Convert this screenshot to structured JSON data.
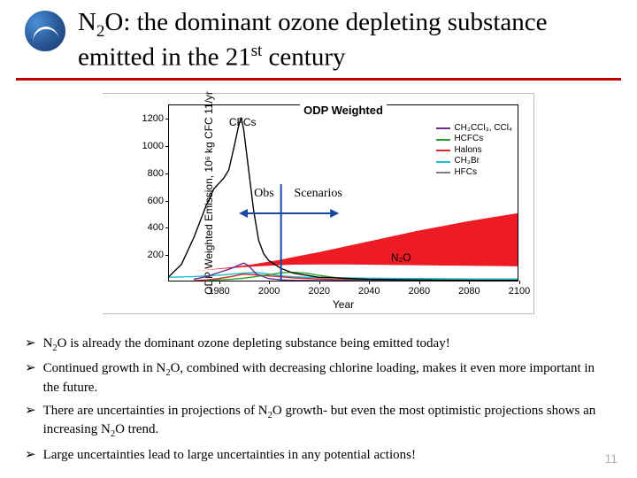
{
  "title_html": "N<sub>2</sub>O: the dominant ozone depleting substance emitted in the 21<sup>st</sup> century",
  "page_number": "11",
  "chart": {
    "title": "ODP Weighted",
    "ylabel": "ODP Weighted Emission, 10⁶ kg CFC 11/yr",
    "xlabel": "Year",
    "xlim": [
      1960,
      2100
    ],
    "ylim": [
      0,
      1300
    ],
    "ytick_step": 200,
    "xtick_step": 20,
    "cfc_label": "CFCs",
    "n2o_label": "N₂O",
    "obs_text": "Obs",
    "scen_text": "Scenarios",
    "obs_divider_year": 2005,
    "legend": [
      {
        "label": "CH₃CCl₃, CCl₄",
        "color": "#6a2c91"
      },
      {
        "label": "HCFCs",
        "color": "#2aa02a"
      },
      {
        "label": "Halons",
        "color": "#d62728"
      },
      {
        "label": "CH₃Br",
        "color": "#17becf"
      },
      {
        "label": "HFCs",
        "color": "#7f7f7f"
      }
    ],
    "series": {
      "cfcs": {
        "color": "#000000",
        "xy": [
          [
            1960,
            30
          ],
          [
            1965,
            120
          ],
          [
            1970,
            320
          ],
          [
            1975,
            560
          ],
          [
            1978,
            680
          ],
          [
            1980,
            720
          ],
          [
            1982,
            760
          ],
          [
            1984,
            820
          ],
          [
            1986,
            980
          ],
          [
            1988,
            1150
          ],
          [
            1989,
            1210
          ],
          [
            1990,
            1120
          ],
          [
            1992,
            820
          ],
          [
            1994,
            520
          ],
          [
            1996,
            300
          ],
          [
            1998,
            200
          ],
          [
            2000,
            150
          ],
          [
            2005,
            90
          ],
          [
            2010,
            55
          ],
          [
            2020,
            25
          ],
          [
            2040,
            10
          ],
          [
            2060,
            5
          ],
          [
            2080,
            3
          ],
          [
            2100,
            2
          ]
        ]
      },
      "ch3ccl3": {
        "color": "#6a2c91",
        "xy": [
          [
            1970,
            10
          ],
          [
            1975,
            30
          ],
          [
            1980,
            60
          ],
          [
            1985,
            90
          ],
          [
            1990,
            130
          ],
          [
            1992,
            110
          ],
          [
            1995,
            50
          ],
          [
            2000,
            15
          ],
          [
            2005,
            5
          ],
          [
            2010,
            2
          ],
          [
            2020,
            0
          ],
          [
            2100,
            0
          ]
        ]
      },
      "hcfcs": {
        "color": "#2aa02a",
        "xy": [
          [
            1975,
            0
          ],
          [
            1980,
            5
          ],
          [
            1985,
            10
          ],
          [
            1990,
            18
          ],
          [
            1995,
            30
          ],
          [
            2000,
            45
          ],
          [
            2005,
            58
          ],
          [
            2010,
            62
          ],
          [
            2015,
            55
          ],
          [
            2020,
            40
          ],
          [
            2030,
            15
          ],
          [
            2040,
            5
          ],
          [
            2060,
            1
          ],
          [
            2100,
            0
          ]
        ]
      },
      "halons": {
        "color": "#d62728",
        "xy": [
          [
            1970,
            0
          ],
          [
            1975,
            5
          ],
          [
            1980,
            15
          ],
          [
            1985,
            30
          ],
          [
            1990,
            48
          ],
          [
            1995,
            42
          ],
          [
            2000,
            35
          ],
          [
            2005,
            28
          ],
          [
            2010,
            20
          ],
          [
            2020,
            12
          ],
          [
            2030,
            6
          ],
          [
            2050,
            2
          ],
          [
            2100,
            0
          ]
        ]
      },
      "ch3br": {
        "color": "#17becf",
        "xy": [
          [
            1960,
            25
          ],
          [
            1970,
            30
          ],
          [
            1980,
            40
          ],
          [
            1990,
            55
          ],
          [
            1995,
            60
          ],
          [
            2000,
            50
          ],
          [
            2005,
            35
          ],
          [
            2010,
            28
          ],
          [
            2020,
            22
          ],
          [
            2040,
            18
          ],
          [
            2060,
            15
          ],
          [
            2080,
            13
          ],
          [
            2100,
            12
          ]
        ]
      },
      "n2o_lower": {
        "xy": [
          [
            1960,
            60
          ],
          [
            1965,
            65
          ],
          [
            1970,
            72
          ],
          [
            1975,
            78
          ],
          [
            1980,
            85
          ],
          [
            1985,
            92
          ],
          [
            1990,
            100
          ],
          [
            1995,
            105
          ],
          [
            2000,
            110
          ],
          [
            2005,
            115
          ],
          [
            2010,
            118
          ],
          [
            2020,
            120
          ],
          [
            2030,
            120
          ],
          [
            2040,
            118
          ],
          [
            2050,
            116
          ],
          [
            2060,
            114
          ],
          [
            2070,
            112
          ],
          [
            2080,
            110
          ],
          [
            2090,
            108
          ],
          [
            2100,
            106
          ]
        ]
      },
      "n2o_upper": {
        "xy": [
          [
            1960,
            60
          ],
          [
            1965,
            65
          ],
          [
            1970,
            72
          ],
          [
            1975,
            80
          ],
          [
            1980,
            90
          ],
          [
            1985,
            100
          ],
          [
            1990,
            112
          ],
          [
            1995,
            125
          ],
          [
            2000,
            140
          ],
          [
            2005,
            155
          ],
          [
            2010,
            175
          ],
          [
            2020,
            210
          ],
          [
            2030,
            250
          ],
          [
            2040,
            290
          ],
          [
            2050,
            330
          ],
          [
            2060,
            370
          ],
          [
            2070,
            405
          ],
          [
            2080,
            440
          ],
          [
            2090,
            470
          ],
          [
            2100,
            500
          ]
        ]
      },
      "n2o_fill_color": "#ed1c24"
    }
  },
  "bullets": [
    "N<sub>2</sub>O is already the dominant ozone depleting substance being emitted today!",
    "Continued growth in N<sub>2</sub>O, combined with decreasing chlorine loading, makes it even more important in the future.",
    "There are uncertainties in projections of N<sub>2</sub>O growth- but even the most optimistic projections shows an increasing N<sub>2</sub>O trend.",
    "Large uncertainties lead to large uncertainties in any potential actions!"
  ]
}
